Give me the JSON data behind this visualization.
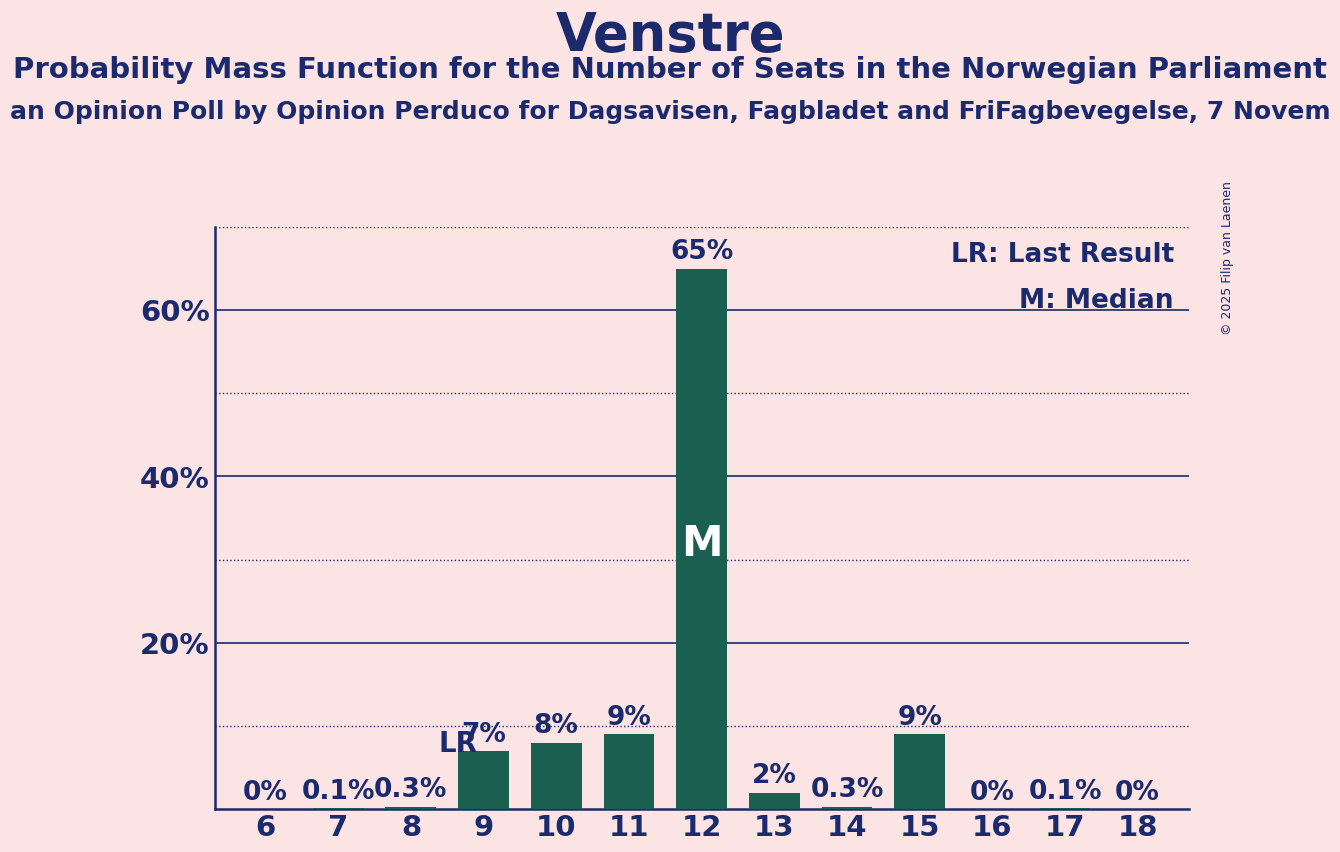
{
  "title": "Venstre",
  "subtitle": "Probability Mass Function for the Number of Seats in the Norwegian Parliament",
  "source": "an Opinion Poll by Opinion Perduco for Dagsavisen, Fagbladet and FriFagbevegelse, 7 Novem",
  "copyright": "© 2025 Filip van Laenen",
  "seats": [
    6,
    7,
    8,
    9,
    10,
    11,
    12,
    13,
    14,
    15,
    16,
    17,
    18
  ],
  "probabilities": [
    0.0,
    0.1,
    0.3,
    7.0,
    8.0,
    9.0,
    65.0,
    2.0,
    0.3,
    9.0,
    0.0,
    0.1,
    0.0
  ],
  "bar_color": "#1a5f50",
  "background_color": "#fce4e4",
  "text_color": "#1a2a6c",
  "LR_seat": 8,
  "median_seat": 12,
  "ylim": [
    0,
    70
  ],
  "yticks": [
    0,
    10,
    20,
    30,
    40,
    50,
    60,
    70
  ],
  "solid_gridlines": [
    20,
    40,
    60
  ],
  "dotted_gridlines": [
    10,
    30,
    50,
    70
  ],
  "title_fontsize": 38,
  "subtitle_fontsize": 21,
  "source_fontsize": 18,
  "bar_label_fontsize": 19,
  "axis_tick_fontsize": 21,
  "legend_fontsize": 19,
  "marker_inside_fontsize": 30,
  "lr_label_fontsize": 20,
  "copyright_fontsize": 9
}
